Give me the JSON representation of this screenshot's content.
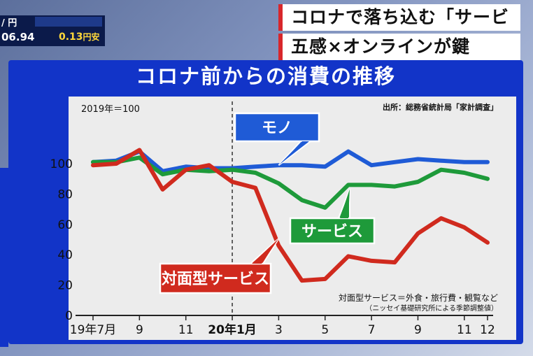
{
  "ticker": {
    "pair": "/ 円",
    "rate": "06.94",
    "change": "0.13",
    "change_unit": "円安"
  },
  "headline": {
    "line1": "コロナで落ち込む「サービス」",
    "line2": "五感×オンラインが鍵"
  },
  "colors": {
    "mono": "#1f5bd6",
    "service": "#1e9a3a",
    "face": "#d02a1e",
    "frame": "#1234c8"
  },
  "chart_data": {
    "type": "line",
    "title": "コロナ前からの消費の推移",
    "note": "2019年＝100",
    "source": "出所：総務省統計局「家計調査」",
    "footnote1": "対面型サービス＝外食・旅行費・観覧など",
    "footnote2": "（ニッセイ基礎研究所による季節調整値）",
    "x_tick_labels": [
      "19年7月",
      "9",
      "11",
      "20年1月",
      "3",
      "5",
      "7",
      "9",
      "11",
      "12"
    ],
    "x_tick_index": [
      0,
      2,
      4,
      6,
      8,
      10,
      12,
      14,
      16,
      17
    ],
    "y_ticks": [
      0,
      20,
      40,
      60,
      80,
      100
    ],
    "ylim": [
      0,
      115
    ],
    "divider_index": 6,
    "x": [
      "2019-07",
      "2019-08",
      "2019-09",
      "2019-10",
      "2019-11",
      "2019-12",
      "2020-01",
      "2020-02",
      "2020-03",
      "2020-04",
      "2020-05",
      "2020-06",
      "2020-07",
      "2020-08",
      "2020-09",
      "2020-10",
      "2020-11",
      "2020-12"
    ],
    "series": [
      {
        "name": "モノ",
        "key": "mono",
        "values": [
          101,
          102,
          108,
          95,
          98,
          97,
          97,
          98,
          99,
          99,
          98,
          108,
          99,
          101,
          103,
          102,
          101,
          101
        ]
      },
      {
        "name": "サービス",
        "key": "service",
        "values": [
          101,
          101,
          104,
          93,
          96,
          95,
          96,
          94,
          87,
          76,
          71,
          86,
          86,
          85,
          88,
          96,
          94,
          90
        ]
      },
      {
        "name": "対面型サービス",
        "key": "face",
        "values": [
          99,
          100,
          109,
          83,
          96,
          99,
          88,
          84,
          46,
          23,
          24,
          39,
          36,
          35,
          54,
          64,
          58,
          48
        ]
      }
    ]
  }
}
